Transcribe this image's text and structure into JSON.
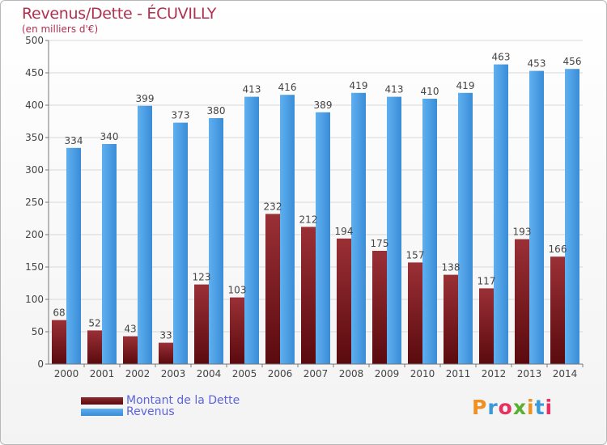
{
  "chart_data": {
    "type": "bar",
    "title": "Revenus/Dette - ÉCUVILLY",
    "subtitle": "(en milliers d'€)",
    "categories": [
      "2000",
      "2001",
      "2002",
      "2003",
      "2004",
      "2005",
      "2006",
      "2007",
      "2008",
      "2009",
      "2010",
      "2011",
      "2012",
      "2013",
      "2014"
    ],
    "series": [
      {
        "name": "Montant de la Dette",
        "color": "#7a1a1f",
        "values": [
          68,
          52,
          43,
          33,
          123,
          103,
          232,
          212,
          194,
          175,
          157,
          138,
          117,
          193,
          166
        ]
      },
      {
        "name": "Revenus",
        "color": "#4aa0e6",
        "values": [
          334,
          340,
          399,
          373,
          380,
          413,
          416,
          389,
          419,
          413,
          410,
          419,
          463,
          453,
          456
        ]
      }
    ],
    "ylim": [
      0,
      500
    ],
    "yticks": [
      0,
      50,
      100,
      150,
      200,
      250,
      300,
      350,
      400,
      450,
      500
    ],
    "grid": true,
    "legend_position": "bottom-left"
  },
  "legend": {
    "items": [
      {
        "label": "Montant de la Dette"
      },
      {
        "label": "Revenus"
      }
    ]
  },
  "logo": {
    "letters": [
      "P",
      "r",
      "o",
      "x",
      "i",
      "t",
      "i"
    ],
    "colors": [
      "#f09020",
      "#3a9ad8",
      "#e83060",
      "#58b030",
      "#f09020",
      "#3a9ad8",
      "#e83060"
    ]
  }
}
